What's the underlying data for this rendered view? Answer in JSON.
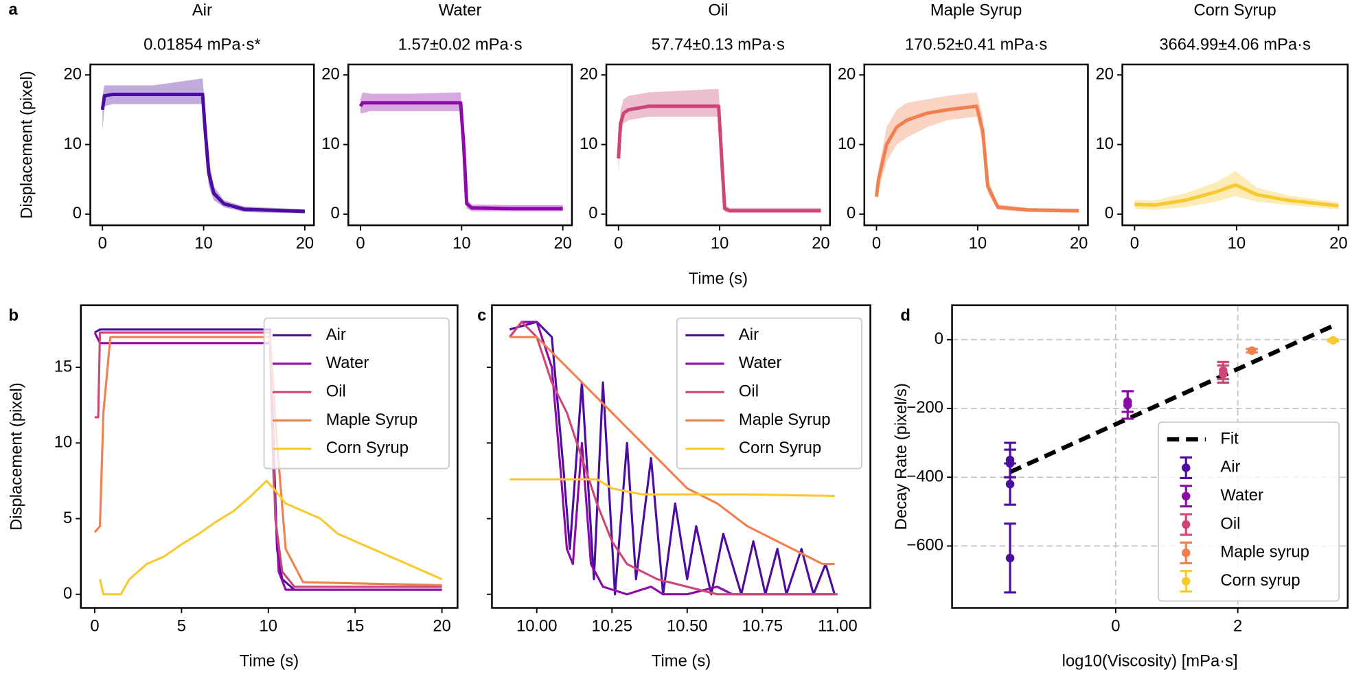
{
  "chart_data": [
    {
      "type": "line",
      "panel_label": "a",
      "title": "Air",
      "subtitle": "0.01854 mPa·s*",
      "ylabel": "Displacement (pixel)",
      "xlim": [
        -1.2,
        20.9
      ],
      "ylim": [
        -1.6,
        21.5
      ],
      "xticks": [
        0,
        10,
        20
      ],
      "yticks": [
        0,
        10,
        20
      ],
      "series": [
        {
          "name": "Air",
          "color": "#4c0ca0",
          "x": [
            0,
            0.2,
            1,
            5,
            9.9,
            10.1,
            10.5,
            11,
            12,
            14,
            20
          ],
          "values": [
            15,
            17,
            17.2,
            17.2,
            17.2,
            13,
            6,
            3,
            1.5,
            0.7,
            0.4
          ],
          "lower": [
            12,
            15.5,
            15.8,
            15.8,
            15.8,
            10,
            4,
            2,
            1,
            0.3,
            0.1
          ],
          "upper": [
            17,
            18.5,
            18.5,
            18.5,
            19.5,
            16,
            8,
            4,
            2,
            1.1,
            0.7
          ]
        }
      ]
    },
    {
      "type": "line",
      "title": "Water",
      "subtitle": "1.57±0.02 mPa·s",
      "xlim": [
        -1.2,
        20.9
      ],
      "ylim": [
        -1.6,
        21.5
      ],
      "xticks": [
        0,
        10,
        20
      ],
      "yticks": [
        0,
        10,
        20
      ],
      "series": [
        {
          "name": "Water",
          "color": "#8c0aa6",
          "x": [
            0,
            0.2,
            1,
            5,
            9.9,
            10.2,
            10.5,
            11,
            15,
            20
          ],
          "values": [
            15.5,
            16,
            16,
            16,
            16,
            10,
            1.5,
            0.9,
            0.8,
            0.8
          ],
          "lower": [
            14.5,
            14.5,
            14.8,
            14.8,
            14.8,
            8,
            0.8,
            0.4,
            0.4,
            0.4
          ],
          "upper": [
            16.5,
            17.5,
            17.3,
            17.3,
            17.5,
            12,
            2.2,
            1.4,
            1.3,
            1.3
          ]
        }
      ]
    },
    {
      "type": "line",
      "title": "Oil",
      "subtitle": "57.74±0.13 mPa·s",
      "xlabel": "Time (s)",
      "xlim": [
        -1.2,
        20.9
      ],
      "ylim": [
        -1.6,
        21.5
      ],
      "xticks": [
        0,
        10,
        20
      ],
      "yticks": [
        0,
        10,
        20
      ],
      "series": [
        {
          "name": "Oil",
          "color": "#cc4778",
          "x": [
            0,
            0.2,
            0.5,
            1,
            3,
            9.9,
            10.2,
            10.5,
            11,
            15,
            20
          ],
          "values": [
            8,
            13,
            14.5,
            15,
            15.5,
            15.5,
            8,
            0.8,
            0.5,
            0.5,
            0.5
          ],
          "lower": [
            6,
            11,
            13,
            13.5,
            14,
            14,
            6,
            0.3,
            0.2,
            0.2,
            0.2
          ],
          "upper": [
            10,
            15,
            16.5,
            17,
            17.5,
            18,
            10,
            1.3,
            0.9,
            0.9,
            0.9
          ]
        }
      ]
    },
    {
      "type": "line",
      "title": "Maple Syrup",
      "subtitle": "170.52±0.41 mPa·s",
      "xlim": [
        -1.2,
        20.9
      ],
      "ylim": [
        -1.6,
        21.5
      ],
      "xticks": [
        0,
        10,
        20
      ],
      "yticks": [
        0,
        10,
        20
      ],
      "series": [
        {
          "name": "Maple Syrup",
          "color": "#f0804f",
          "x": [
            0,
            0.2,
            1,
            2,
            3,
            5,
            7,
            9.9,
            10.5,
            11,
            12,
            15,
            20
          ],
          "values": [
            2.5,
            5,
            10,
            12.5,
            13.5,
            14.5,
            15,
            15.5,
            12,
            4,
            1,
            0.6,
            0.5
          ],
          "lower": [
            2,
            3.5,
            7.5,
            10,
            11,
            12.5,
            13.5,
            14,
            10,
            3,
            0.6,
            0.3,
            0.2
          ],
          "upper": [
            3,
            6.5,
            12.5,
            15,
            16,
            16.5,
            17,
            17.5,
            14,
            5,
            1.4,
            0.9,
            0.8
          ]
        }
      ]
    },
    {
      "type": "line",
      "title": "Corn Syrup",
      "subtitle": "3664.99±4.06 mPa·s",
      "xlim": [
        -1.2,
        20.9
      ],
      "ylim": [
        -1.6,
        21.5
      ],
      "xticks": [
        0,
        10,
        20
      ],
      "yticks": [
        0,
        10,
        20
      ],
      "series": [
        {
          "name": "Corn Syrup",
          "color": "#f9c932",
          "x": [
            0,
            2,
            5,
            8,
            9.9,
            12,
            15,
            20
          ],
          "values": [
            1.4,
            1.3,
            2,
            3.2,
            4.2,
            2.8,
            2,
            1.2
          ],
          "lower": [
            0.8,
            0.6,
            1,
            1.8,
            2.6,
            1.8,
            1.3,
            0.7
          ],
          "upper": [
            2,
            2,
            3,
            4.6,
            6.2,
            3.8,
            2.7,
            1.7
          ]
        }
      ]
    },
    {
      "type": "line",
      "panel_label": "b",
      "xlabel": "Time (s)",
      "ylabel": "Displacement (pixel)",
      "legend": "upper right",
      "xlim": [
        -0.8,
        20.9
      ],
      "ylim": [
        -0.9,
        19.1
      ],
      "xticks": [
        0,
        5,
        10,
        15,
        20
      ],
      "yticks": [
        0,
        5,
        10,
        15
      ],
      "series": [
        {
          "name": "Air",
          "color": "#4c0ca0",
          "x": [
            0,
            0.3,
            10.1,
            10.3,
            10.5,
            10.8,
            11.5,
            20
          ],
          "values": [
            17.3,
            17.5,
            17.5,
            10,
            3,
            1,
            0.3,
            0.3
          ]
        },
        {
          "name": "Water",
          "color": "#8c0aa6",
          "x": [
            0,
            0.3,
            10.1,
            10.3,
            10.6,
            11,
            20
          ],
          "values": [
            17.3,
            16.6,
            16.6,
            8,
            1.5,
            0.3,
            0.3
          ]
        },
        {
          "name": "Oil",
          "color": "#cc4778",
          "x": [
            0,
            0.2,
            0.3,
            10.1,
            10.4,
            10.8,
            11.5,
            20
          ],
          "values": [
            11.7,
            11.7,
            17.3,
            17.3,
            5,
            1.5,
            0.5,
            0.5
          ]
        },
        {
          "name": "Maple Syrup",
          "color": "#f0804f",
          "x": [
            0,
            0.3,
            0.5,
            0.9,
            10.1,
            10.5,
            11,
            12,
            20
          ],
          "values": [
            4.1,
            4.5,
            12,
            17,
            17,
            10,
            3,
            0.8,
            0.6
          ]
        },
        {
          "name": "Corn Syrup",
          "color": "#f9c932",
          "x": [
            0.3,
            0.5,
            1.5,
            2,
            3,
            4,
            5,
            6,
            7,
            8,
            9,
            9.9,
            10.3,
            11,
            12,
            13,
            14,
            15,
            16,
            17,
            18,
            19,
            20
          ],
          "values": [
            1,
            0,
            0,
            1,
            2,
            2.5,
            3.3,
            4,
            4.8,
            5.5,
            6.5,
            7.5,
            7,
            6,
            5.5,
            5,
            4,
            3.5,
            3,
            2.5,
            2,
            1.5,
            1
          ]
        }
      ]
    },
    {
      "type": "line",
      "panel_label": "c",
      "xlabel": "Time (s)",
      "legend": "upper right",
      "ytick_labels": false,
      "xlim": [
        9.851,
        11.109
      ],
      "ylim": [
        -0.9,
        19.1
      ],
      "xticks": [
        {
          "value": 10,
          "label": "10.00"
        },
        {
          "value": 10.25,
          "label": "10.25"
        },
        {
          "value": 10.5,
          "label": "10.50"
        },
        {
          "value": 10.75,
          "label": "10.75"
        },
        {
          "value": 11,
          "label": "11.00"
        }
      ],
      "yticks": [
        0,
        5,
        10,
        15
      ],
      "series": [
        {
          "name": "Air",
          "color": "#4c0ca0",
          "x": [
            9.91,
            10.0,
            10.05,
            10.09,
            10.11,
            10.15,
            10.19,
            10.22,
            10.26,
            10.3,
            10.33,
            10.38,
            10.42,
            10.46,
            10.5,
            10.53,
            10.58,
            10.62,
            10.68,
            10.72,
            10.76,
            10.8,
            10.83,
            10.88,
            10.92,
            10.96,
            10.99
          ],
          "values": [
            17.5,
            18,
            17,
            8,
            3,
            14,
            1,
            14,
            0,
            10,
            1,
            9,
            0,
            6,
            1,
            4.5,
            0,
            4,
            0,
            3.5,
            0,
            3,
            0,
            3,
            0,
            2,
            0
          ]
        },
        {
          "name": "Water",
          "color": "#8c0aa6",
          "x": [
            9.91,
            9.95,
            10.0,
            10.05,
            10.08,
            10.1,
            10.12,
            10.15,
            10.18,
            10.22,
            10.3,
            10.38,
            10.42,
            10.5,
            10.6,
            10.65,
            10.9,
            10.99
          ],
          "values": [
            17,
            18,
            18,
            15,
            8,
            3,
            2,
            10,
            2,
            0.5,
            0,
            0.5,
            0,
            0,
            0.5,
            0,
            0,
            0
          ]
        },
        {
          "name": "Oil",
          "color": "#cc4778",
          "x": [
            9.91,
            9.95,
            10.0,
            10.05,
            10.1,
            10.15,
            10.2,
            10.25,
            10.3,
            10.4,
            10.5,
            10.6,
            11.0
          ],
          "values": [
            17,
            18,
            17,
            14,
            12,
            9,
            6,
            3.5,
            2,
            1,
            0.5,
            0,
            0
          ]
        },
        {
          "name": "Maple Syrup",
          "color": "#f0804f",
          "x": [
            9.91,
            10.0,
            10.05,
            10.1,
            10.15,
            10.2,
            10.25,
            10.3,
            10.35,
            10.4,
            10.45,
            10.5,
            10.6,
            10.7,
            10.8,
            10.9,
            10.95,
            10.99
          ],
          "values": [
            17,
            17,
            16,
            15,
            14,
            13,
            12,
            11,
            10,
            9,
            8,
            7,
            6,
            4.5,
            3.5,
            2.5,
            2,
            2
          ]
        },
        {
          "name": "Corn Syrup",
          "color": "#f9c932",
          "x": [
            9.91,
            10.2,
            10.25,
            10.3,
            10.35,
            10.5,
            10.7,
            10.99
          ],
          "values": [
            7.6,
            7.6,
            7,
            6.8,
            6.6,
            6.6,
            6.6,
            6.5
          ]
        }
      ]
    },
    {
      "type": "errorbar",
      "panel_label": "d",
      "xlabel": "log10(Viscosity) [mPa·s]",
      "ylabel": "Decay Rate (pixel/s)",
      "legend": "lower right",
      "grid": true,
      "xlim": [
        -2.68,
        3.8
      ],
      "ylim": [
        -780,
        100
      ],
      "xticks": [
        0,
        2
      ],
      "yticks": [
        {
          "value": -600,
          "label": "−600"
        },
        {
          "value": -400,
          "label": "−400"
        },
        {
          "value": -200,
          "label": "−200"
        },
        0
      ],
      "fit": {
        "name": "Fit",
        "color": "#000000",
        "x": [
          -1.73,
          3.56
        ],
        "values": [
          -385,
          40
        ]
      },
      "series": [
        {
          "name": "Air",
          "color": "#4c0ca0",
          "x": [
            -1.73,
            -1.73,
            -1.73,
            -1.73
          ],
          "values": [
            -350,
            -360,
            -420,
            -635
          ],
          "errors": [
            50,
            40,
            60,
            100
          ]
        },
        {
          "name": "Water",
          "color": "#8c0aa6",
          "x": [
            0.196,
            0.196
          ],
          "values": [
            -180,
            -190
          ],
          "errors": [
            30,
            40
          ]
        },
        {
          "name": "Oil",
          "color": "#cc4778",
          "x": [
            1.76,
            1.76
          ],
          "values": [
            -90,
            -100
          ],
          "errors": [
            25,
            25
          ]
        },
        {
          "name": "Maple syrup",
          "color": "#f0804f",
          "x": [
            2.23
          ],
          "values": [
            -32
          ],
          "errors": [
            5
          ]
        },
        {
          "name": "Corn syrup",
          "color": "#f9c932",
          "x": [
            3.56
          ],
          "values": [
            -2
          ],
          "errors": [
            3
          ]
        }
      ]
    }
  ]
}
